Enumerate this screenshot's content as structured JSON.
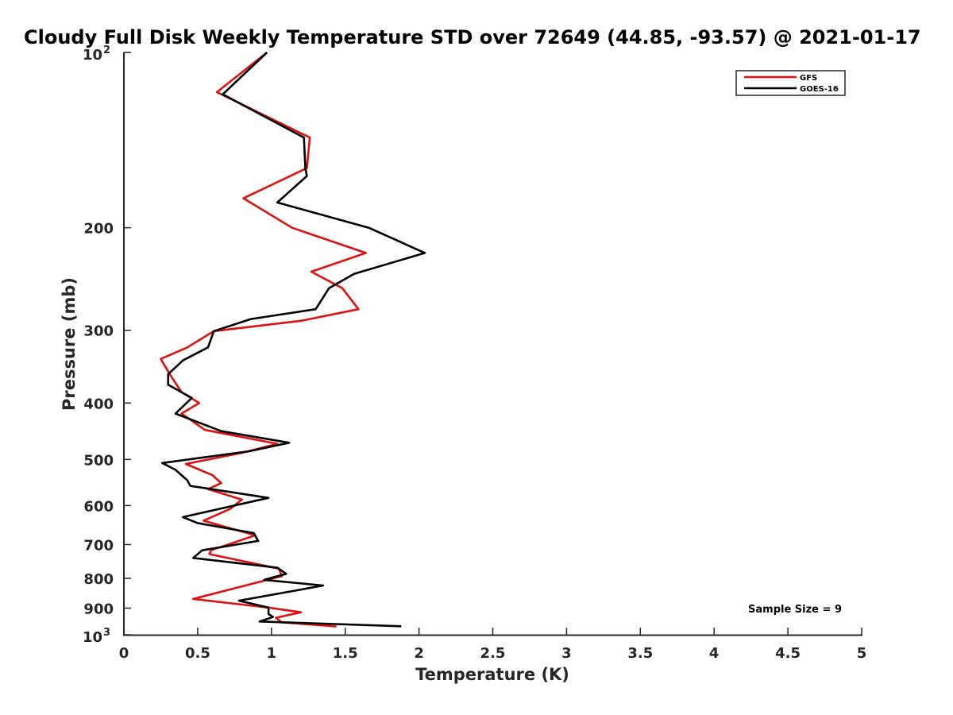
{
  "chart_data": {
    "type": "line",
    "title": "Cloudy Full Disk Weekly Temperature STD over 72649 (44.85, -93.57) @ 2021-01-17",
    "xlabel": "Temperature (K)",
    "ylabel": "Pressure (mb)",
    "xlim": [
      0,
      5
    ],
    "ylim": [
      100,
      1000
    ],
    "y_scale": "log",
    "y_reversed": true,
    "grid": false,
    "legend_position": "top-right",
    "x_ticks": [
      {
        "value": 0,
        "label": "0"
      },
      {
        "value": 0.5,
        "label": "0.5"
      },
      {
        "value": 1,
        "label": "1"
      },
      {
        "value": 1.5,
        "label": "1.5"
      },
      {
        "value": 2,
        "label": "2"
      },
      {
        "value": 2.5,
        "label": "2.5"
      },
      {
        "value": 3,
        "label": "3"
      },
      {
        "value": 3.5,
        "label": "3.5"
      },
      {
        "value": 4,
        "label": "4"
      },
      {
        "value": 4.5,
        "label": "4.5"
      },
      {
        "value": 5,
        "label": "5"
      }
    ],
    "y_ticks": [
      {
        "value": 100,
        "label": "10",
        "exp": "2"
      },
      {
        "value": 200,
        "label": "200"
      },
      {
        "value": 300,
        "label": "300"
      },
      {
        "value": 400,
        "label": "400"
      },
      {
        "value": 500,
        "label": "500"
      },
      {
        "value": 600,
        "label": "600"
      },
      {
        "value": 700,
        "label": "700"
      },
      {
        "value": 800,
        "label": "800"
      },
      {
        "value": 900,
        "label": "900"
      },
      {
        "value": 1000,
        "label": "10",
        "exp": "3"
      }
    ],
    "series": [
      {
        "name": "GFS",
        "color": "#e01010",
        "points": [
          [
            0.97,
            100
          ],
          [
            0.63,
            117
          ],
          [
            1.26,
            140
          ],
          [
            1.24,
            158
          ],
          [
            0.81,
            178
          ],
          [
            1.14,
            200
          ],
          [
            1.64,
            221
          ],
          [
            1.27,
            238
          ],
          [
            1.48,
            254
          ],
          [
            1.59,
            276
          ],
          [
            1.2,
            289
          ],
          [
            0.61,
            301
          ],
          [
            0.43,
            321
          ],
          [
            0.25,
            336
          ],
          [
            0.32,
            360
          ],
          [
            0.39,
            383
          ],
          [
            0.51,
            400
          ],
          [
            0.39,
            417
          ],
          [
            0.55,
            445
          ],
          [
            1.04,
            470
          ],
          [
            0.8,
            487
          ],
          [
            0.42,
            509
          ],
          [
            0.6,
            532
          ],
          [
            0.66,
            549
          ],
          [
            0.57,
            562
          ],
          [
            0.8,
            586
          ],
          [
            0.72,
            608
          ],
          [
            0.54,
            637
          ],
          [
            0.89,
            675
          ],
          [
            0.59,
            716
          ],
          [
            0.58,
            727
          ],
          [
            1.05,
            770
          ],
          [
            1.07,
            793
          ],
          [
            0.47,
            868
          ],
          [
            0.98,
            898
          ],
          [
            1.2,
            915
          ],
          [
            1.03,
            935
          ],
          [
            1.07,
            952
          ],
          [
            1.44,
            968
          ]
        ]
      },
      {
        "name": "GOES-16",
        "color": "#000000",
        "points": [
          [
            0.97,
            100
          ],
          [
            0.67,
            118
          ],
          [
            1.22,
            140
          ],
          [
            1.23,
            158
          ],
          [
            1.24,
            163
          ],
          [
            1.04,
            181
          ],
          [
            1.66,
            200
          ],
          [
            2.04,
            221
          ],
          [
            1.56,
            240
          ],
          [
            1.39,
            254
          ],
          [
            1.3,
            276
          ],
          [
            0.86,
            287
          ],
          [
            0.61,
            301
          ],
          [
            0.57,
            321
          ],
          [
            0.4,
            338
          ],
          [
            0.3,
            357
          ],
          [
            0.3,
            372
          ],
          [
            0.46,
            392
          ],
          [
            0.35,
            417
          ],
          [
            0.66,
            447
          ],
          [
            1.12,
            468
          ],
          [
            0.85,
            484
          ],
          [
            0.26,
            507
          ],
          [
            0.35,
            521
          ],
          [
            0.43,
            543
          ],
          [
            0.45,
            555
          ],
          [
            0.98,
            582
          ],
          [
            0.4,
            628
          ],
          [
            0.5,
            643
          ],
          [
            0.88,
            669
          ],
          [
            0.91,
            690
          ],
          [
            0.53,
            716
          ],
          [
            0.47,
            738
          ],
          [
            1.04,
            767
          ],
          [
            1.1,
            786
          ],
          [
            0.95,
            805
          ],
          [
            1.35,
            823
          ],
          [
            1.17,
            839
          ],
          [
            0.78,
            874
          ],
          [
            0.98,
            898
          ],
          [
            0.98,
            921
          ],
          [
            1.01,
            932
          ],
          [
            0.92,
            949
          ],
          [
            1.88,
            967
          ]
        ]
      }
    ],
    "annotations": [
      {
        "text": "Sample Size = 9"
      }
    ]
  }
}
